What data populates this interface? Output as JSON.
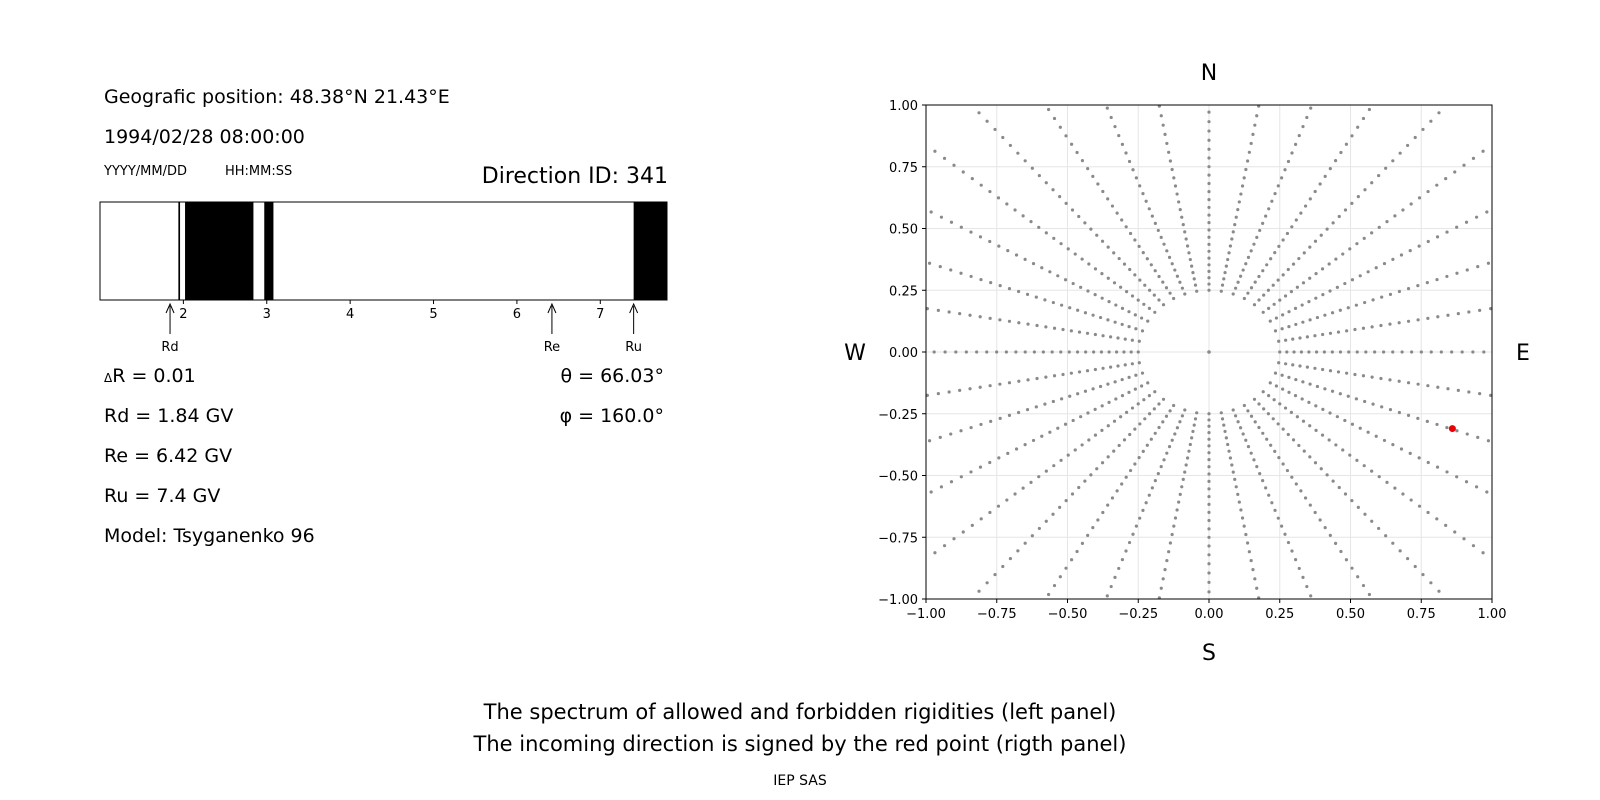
{
  "header": {
    "position_line": "Geografic position: 48.38°N 21.43°E",
    "datetime": "1994/02/28 08:00:00",
    "date_format": "YYYY/MM/DD",
    "time_format": "HH:MM:SS",
    "direction_id": "Direction ID: 341"
  },
  "params": {
    "delta_r": "R = 0.01",
    "delta_symbol": "Δ",
    "theta": "θ = 66.03°",
    "phi": "φ = 160.0°",
    "rd": "Rd = 1.84 GV",
    "re": "Re = 6.42 GV",
    "ru": "Ru = 7.4 GV",
    "model": "Model: Tsyganenko 96"
  },
  "footer": {
    "line1": "The spectrum of allowed and forbidden rigidities (left panel)",
    "line2": "The incoming direction is signed by the red point (rigth panel)",
    "credit": "IEP SAS"
  },
  "chart_data": [
    {
      "type": "bar",
      "description_role": "rigidity spectrum",
      "xlim": [
        1.0,
        7.8
      ],
      "xticks": [
        "2",
        "3",
        "4",
        "5",
        "6",
        "7"
      ],
      "xtick_values": [
        2,
        3,
        4,
        5,
        6,
        7
      ],
      "forbidden_bands": [
        [
          1.94,
          1.96
        ],
        [
          2.02,
          2.84
        ],
        [
          2.97,
          3.08
        ],
        [
          7.4,
          7.8
        ]
      ],
      "markers": [
        {
          "label": "Rd",
          "value": 1.84
        },
        {
          "label": "Re",
          "value": 6.42
        },
        {
          "label": "Ru",
          "value": 7.4
        }
      ],
      "colors": {
        "forbidden": "#000000",
        "allowed": "#ffffff"
      }
    },
    {
      "type": "scatter",
      "xlim": [
        -1.0,
        1.0
      ],
      "ylim": [
        -1.0,
        1.0
      ],
      "ticks": [
        "−1.00",
        "−0.75",
        "−0.50",
        "−0.25",
        "0.00",
        "0.25",
        "0.50",
        "0.75",
        "1.00"
      ],
      "tick_values": [
        -1.0,
        -0.75,
        -0.5,
        -0.25,
        0.0,
        0.25,
        0.5,
        0.75,
        1.0
      ],
      "compass": {
        "north": "N",
        "south": "S",
        "west": "W",
        "east": "E"
      },
      "grid": true,
      "series": [
        {
          "role": "directions",
          "color": "#8a8a8a",
          "generator": {
            "center": [
              0,
              0
            ],
            "ring_radii": [
              0.25
            ],
            "radial_spokes": 36,
            "spoke_start_radius": 0.25,
            "spoke_step": 0.02
          }
        },
        {
          "role": "incoming direction",
          "color": "#e8000b",
          "points": [
            [
              0.86,
              -0.31
            ]
          ]
        }
      ]
    }
  ]
}
